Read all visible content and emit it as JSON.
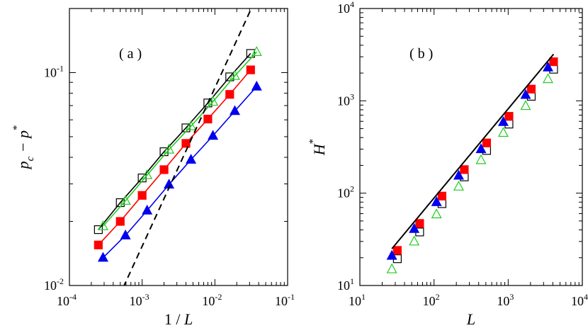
{
  "chart_data": [
    {
      "panel": "a",
      "type": "line",
      "panel_label": "( a )",
      "xlabel": "1 / L",
      "ylabel_base": "p",
      "ylabel_sub": "c",
      "ylabel_rest": " − p",
      "ylabel_sup": "*",
      "xscale": "log",
      "yscale": "log",
      "xlim": [
        0.0001,
        0.1
      ],
      "ylim": [
        0.01,
        0.2
      ],
      "xticks": [
        {
          "value": 0.0001,
          "base": "10",
          "exp": "-4"
        },
        {
          "value": 0.001,
          "base": "10",
          "exp": "-3"
        },
        {
          "value": 0.01,
          "base": "10",
          "exp": "-2"
        },
        {
          "value": 0.1,
          "base": "10",
          "exp": "-1"
        }
      ],
      "yticks": [
        {
          "value": 0.01,
          "base": "10",
          "exp": "-2"
        },
        {
          "value": 0.1,
          "base": "10",
          "exp": "-1"
        }
      ],
      "series": [
        {
          "name": "open squares",
          "marker": "square",
          "fill": "none",
          "stroke": "#000000",
          "line": "#000000",
          "x": [
            0.00025,
            0.0005,
            0.001,
            0.002,
            0.004,
            0.008,
            0.016,
            0.031
          ],
          "y": [
            0.0183,
            0.0245,
            0.032,
            0.0425,
            0.055,
            0.072,
            0.0955,
            0.123
          ]
        },
        {
          "name": "open triangles",
          "marker": "triangle",
          "fill": "none",
          "stroke": "#22cc22",
          "line": "#22cc22",
          "x": [
            0.00029,
            0.00059,
            0.00117,
            0.00234,
            0.00469,
            0.0094,
            0.0188,
            0.0375
          ],
          "y": [
            0.019,
            0.025,
            0.033,
            0.0435,
            0.056,
            0.073,
            0.0965,
            0.125
          ]
        },
        {
          "name": "filled squares",
          "marker": "square",
          "fill": "#ff0000",
          "stroke": "#ff0000",
          "line": "#ff0000",
          "x": [
            0.00025,
            0.0005,
            0.001,
            0.002,
            0.004,
            0.008,
            0.016,
            0.031
          ],
          "y": [
            0.0155,
            0.02,
            0.0265,
            0.035,
            0.0465,
            0.0605,
            0.079,
            0.103
          ]
        },
        {
          "name": "filled triangles",
          "marker": "triangle",
          "fill": "#0000ee",
          "stroke": "#0000ee",
          "line": "#0000ee",
          "x": [
            0.00029,
            0.00059,
            0.00117,
            0.00234,
            0.00469,
            0.0094,
            0.0188,
            0.0375
          ],
          "y": [
            0.0135,
            0.0172,
            0.0225,
            0.0298,
            0.039,
            0.0505,
            0.066,
            0.086
          ]
        },
        {
          "name": "dashed guide",
          "marker": "none",
          "line": "#000000",
          "dash": true,
          "x": [
            0.00055,
            0.036
          ],
          "y": [
            0.0098,
            0.22
          ]
        }
      ]
    },
    {
      "panel": "b",
      "type": "scatter",
      "panel_label": "( b )",
      "xlabel": "L",
      "ylabel_base": "H",
      "ylabel_sup": "*",
      "xscale": "log",
      "yscale": "log",
      "xlim": [
        10,
        10000
      ],
      "ylim": [
        10,
        10000
      ],
      "xticks": [
        {
          "value": 10,
          "base": "10",
          "exp": "1"
        },
        {
          "value": 100,
          "base": "10",
          "exp": "2"
        },
        {
          "value": 1000,
          "base": "10",
          "exp": "3"
        },
        {
          "value": 10000,
          "base": "10",
          "exp": "4"
        }
      ],
      "yticks": [
        {
          "value": 10,
          "base": "10",
          "exp": "1"
        },
        {
          "value": 100,
          "base": "10",
          "exp": "2"
        },
        {
          "value": 1000,
          "base": "10",
          "exp": "3"
        },
        {
          "value": 10000,
          "base": "10",
          "exp": "4"
        }
      ],
      "series": [
        {
          "name": "open squares",
          "marker": "square",
          "fill": "none",
          "stroke": "#000000",
          "x": [
            32,
            64,
            128,
            256,
            512,
            1024,
            2048,
            4096
          ],
          "y": [
            19.5,
            38,
            77,
            150,
            290,
            560,
            1120,
            2200
          ]
        },
        {
          "name": "open triangles",
          "marker": "triangle",
          "fill": "none",
          "stroke": "#22cc22",
          "x": [
            27,
            54,
            108,
            215,
            430,
            860,
            1720,
            3440
          ],
          "y": [
            15,
            30,
            59,
            118,
            228,
            450,
            880,
            1720
          ]
        },
        {
          "name": "filled squares",
          "marker": "square",
          "fill": "#ff0000",
          "stroke": "#ff0000",
          "x": [
            32,
            64,
            128,
            256,
            512,
            1024,
            2048,
            4096
          ],
          "y": [
            24,
            47,
            93,
            180,
            350,
            680,
            1340,
            2650
          ]
        },
        {
          "name": "filled triangles",
          "marker": "triangle",
          "fill": "#0000ee",
          "stroke": "#0000ee",
          "x": [
            27,
            54,
            108,
            215,
            430,
            860,
            1720,
            3440
          ],
          "y": [
            21,
            41,
            80,
            155,
            300,
            590,
            1160,
            2300
          ]
        },
        {
          "name": "fit line",
          "marker": "none",
          "line": "#000000",
          "x": [
            27,
            4096
          ],
          "y": [
            25,
            3200
          ]
        }
      ]
    }
  ]
}
